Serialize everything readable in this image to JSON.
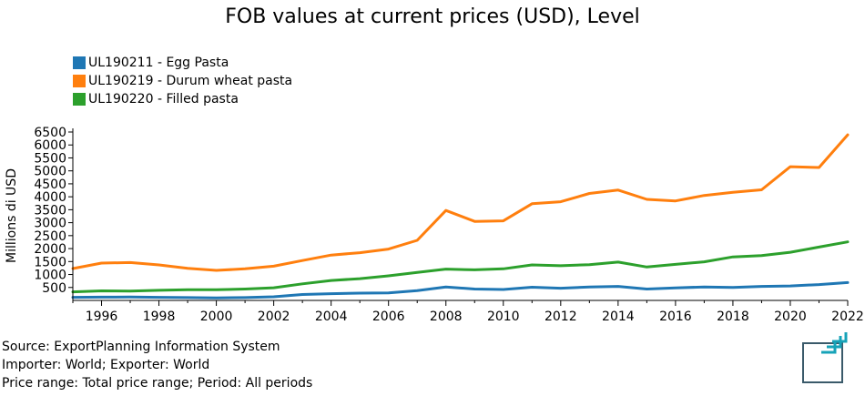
{
  "title": "FOB values at current prices (USD), Level",
  "footer": {
    "source": "Source: ExportPlanning Information System",
    "importer_exporter": "Importer: World; Exporter: World",
    "price_period": "Price range: Total price range; Period: All periods"
  },
  "chart_data": {
    "type": "line",
    "title": "FOB values at current prices (USD), Level",
    "xlabel": "",
    "ylabel": "Millions di USD",
    "xlim": [
      1995,
      2022
    ],
    "ylim": [
      0,
      6500
    ],
    "x_ticks": [
      "1996",
      "1998",
      "2000",
      "2002",
      "2004",
      "2006",
      "2008",
      "2010",
      "2012",
      "2014",
      "2016",
      "2018",
      "2020",
      "2022"
    ],
    "y_ticks": [
      "500",
      "1000",
      "1500",
      "2000",
      "2500",
      "3000",
      "3500",
      "4000",
      "4500",
      "5000",
      "5500",
      "6000",
      "6500"
    ],
    "legend_position": "top-left",
    "x": [
      1995,
      1996,
      1997,
      1998,
      1999,
      2000,
      2001,
      2002,
      2003,
      2004,
      2005,
      2006,
      2007,
      2008,
      2009,
      2010,
      2011,
      2012,
      2013,
      2014,
      2015,
      2016,
      2017,
      2018,
      2019,
      2020,
      2021,
      2022
    ],
    "series": [
      {
        "name": "UL190211 - Egg Pasta",
        "color": "#1f77b4",
        "values": [
          120,
          125,
          130,
          120,
          110,
          100,
          110,
          140,
          230,
          260,
          280,
          290,
          380,
          520,
          440,
          420,
          510,
          470,
          520,
          540,
          440,
          480,
          520,
          500,
          540,
          560,
          610,
          690
        ]
      },
      {
        "name": "UL190219 - Durum wheat pasta",
        "color": "#ff7f0e",
        "values": [
          1230,
          1440,
          1460,
          1370,
          1240,
          1160,
          1220,
          1320,
          1540,
          1750,
          1840,
          1980,
          2320,
          3470,
          3050,
          3070,
          3730,
          3810,
          4130,
          4260,
          3900,
          3840,
          4050,
          4170,
          4270,
          5160,
          5130,
          6390
        ]
      },
      {
        "name": "UL190220 - Filled pasta",
        "color": "#2ca02c",
        "values": [
          330,
          370,
          360,
          390,
          410,
          410,
          440,
          490,
          640,
          770,
          840,
          950,
          1080,
          1210,
          1180,
          1220,
          1370,
          1340,
          1380,
          1480,
          1290,
          1390,
          1490,
          1680,
          1730,
          1860,
          2060,
          2260
        ]
      }
    ]
  }
}
